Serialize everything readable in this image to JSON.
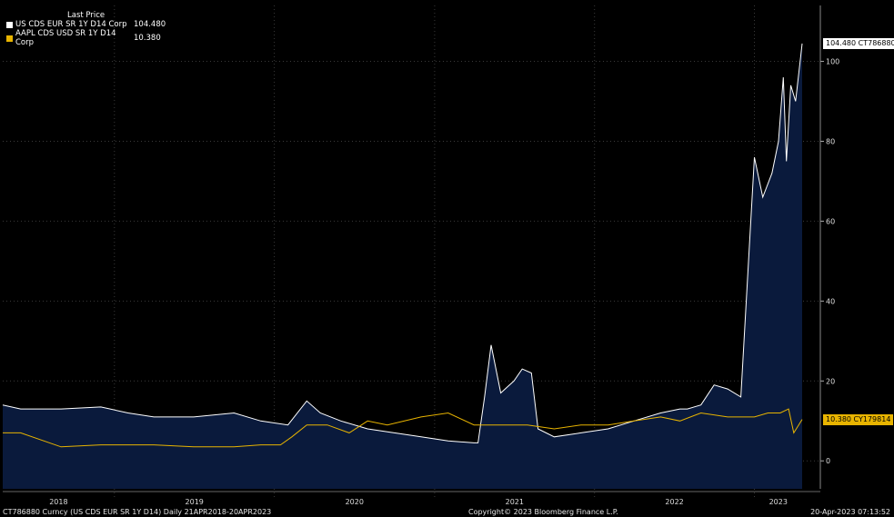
{
  "legend": {
    "title": "Last Price",
    "items": [
      {
        "name": "US CDS EUR SR 1Y D14 Corp",
        "value": "104.480",
        "color": "#ffffff"
      },
      {
        "name": "AAPL CDS USD SR 1Y D14 Corp",
        "value": "10.380",
        "color": "#e8b400"
      }
    ]
  },
  "tags": {
    "white": "104.480 CT786880",
    "yellow": "10.380  CY179814"
  },
  "footer": {
    "left": "CT786880 Curncy (US CDS EUR SR 1Y D14)  Daily 21APR2018-20APR2023",
    "center": "Copyright© 2023 Bloomberg Finance L.P.",
    "right": "20-Apr-2023 07:13:52"
  },
  "colors": {
    "background": "#000000",
    "area_fill": "#0a1a3c",
    "white_line": "#ffffff",
    "yellow_line": "#c8a800",
    "grid": "#3a3a3a"
  },
  "chart_data": {
    "type": "line",
    "title": "",
    "xlabel": "",
    "ylabel": "",
    "ylim": [
      -7,
      114
    ],
    "yticks": [
      0,
      20,
      40,
      60,
      80,
      100
    ],
    "xlim": [
      "2018-04-21",
      "2023-04-20"
    ],
    "x_tick_labels": [
      "2018",
      "2019",
      "2020",
      "2021",
      "2022",
      "2023"
    ],
    "grid": true,
    "legend_position": "top-left",
    "series": [
      {
        "name": "US CDS EUR SR 1Y D14 Corp",
        "color": "#ffffff",
        "area": true,
        "x": [
          "2018-04-21",
          "2018-06-01",
          "2018-09-01",
          "2018-12-01",
          "2019-02-01",
          "2019-04-01",
          "2019-07-01",
          "2019-10-01",
          "2019-12-01",
          "2020-02-01",
          "2020-03-15",
          "2020-04-15",
          "2020-06-01",
          "2020-08-01",
          "2020-10-01",
          "2020-12-01",
          "2021-02-01",
          "2021-04-01",
          "2021-04-10",
          "2021-04-25",
          "2021-05-10",
          "2021-06-01",
          "2021-07-01",
          "2021-07-20",
          "2021-08-10",
          "2021-08-25",
          "2021-10-01",
          "2021-12-01",
          "2022-02-01",
          "2022-04-01",
          "2022-06-01",
          "2022-07-15",
          "2022-08-01",
          "2022-09-01",
          "2022-10-01",
          "2022-11-01",
          "2022-12-01",
          "2023-01-01",
          "2023-01-20",
          "2023-02-10",
          "2023-02-25",
          "2023-03-08",
          "2023-03-15",
          "2023-03-25",
          "2023-04-05",
          "2023-04-20"
        ],
        "values": [
          14,
          13,
          13,
          13.5,
          12,
          11,
          11,
          12,
          10,
          9,
          15,
          12,
          10,
          8,
          7,
          6,
          5,
          4.5,
          4.5,
          16,
          29,
          17,
          20,
          23,
          22,
          8,
          6,
          7,
          8,
          10,
          12,
          13,
          13,
          14,
          19,
          18,
          16,
          76,
          66,
          72,
          80,
          96,
          75,
          94,
          90,
          104.48
        ]
      },
      {
        "name": "AAPL CDS USD SR 1Y D14 Corp",
        "color": "#e8b400",
        "area": false,
        "x": [
          "2018-04-21",
          "2018-06-01",
          "2018-09-01",
          "2018-12-01",
          "2019-02-01",
          "2019-04-01",
          "2019-07-01",
          "2019-10-01",
          "2019-12-01",
          "2020-01-15",
          "2020-02-10",
          "2020-03-15",
          "2020-05-01",
          "2020-06-20",
          "2020-08-01",
          "2020-09-15",
          "2020-12-01",
          "2021-02-01",
          "2021-04-01",
          "2021-06-01",
          "2021-08-01",
          "2021-10-01",
          "2021-12-01",
          "2022-02-01",
          "2022-04-01",
          "2022-06-01",
          "2022-07-15",
          "2022-09-01",
          "2022-11-01",
          "2023-01-01",
          "2023-02-01",
          "2023-03-01",
          "2023-03-20",
          "2023-04-01",
          "2023-04-20"
        ],
        "values": [
          7,
          7,
          3.5,
          4,
          4,
          4,
          3.5,
          3.5,
          4,
          4,
          6,
          9,
          9,
          7,
          10,
          9,
          11,
          12,
          9,
          9,
          9,
          8,
          9,
          9,
          10,
          11,
          10,
          12,
          11,
          11,
          12,
          12,
          13,
          7,
          10.38
        ]
      }
    ]
  }
}
